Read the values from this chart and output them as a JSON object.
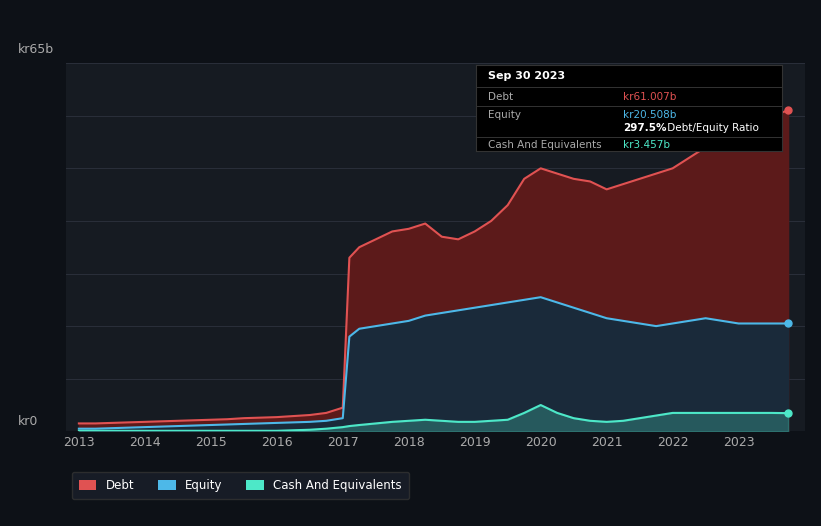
{
  "background_color": "#0d1117",
  "plot_bg_color": "#161b22",
  "grid_color": "#2a2f3a",
  "ylabel_text": "kr65b",
  "ylabel0_text": "kr0",
  "x_ticks": [
    2013,
    2014,
    2015,
    2016,
    2017,
    2018,
    2019,
    2020,
    2021,
    2022,
    2023
  ],
  "debt_color": "#e05252",
  "equity_color": "#4db8e8",
  "cash_color": "#4de8c8",
  "debt_fill_color": "#5c1a1a",
  "equity_fill_color": "#1a2a3a",
  "tooltip_bg": "#000000",
  "tooltip_title": "Sep 30 2023",
  "tooltip_debt_label": "Debt",
  "tooltip_debt_value": "kr61.007b",
  "tooltip_equity_label": "Equity",
  "tooltip_equity_value": "kr20.508b",
  "tooltip_ratio": "297.5%",
  "tooltip_ratio_text": " Debt/Equity Ratio",
  "tooltip_cash_label": "Cash And Equivalents",
  "tooltip_cash_value": "kr3.457b",
  "legend_debt": "Debt",
  "legend_equity": "Equity",
  "legend_cash": "Cash And Equivalents",
  "debt_data": [
    [
      2013.0,
      1.5
    ],
    [
      2013.25,
      1.5
    ],
    [
      2013.5,
      1.6
    ],
    [
      2013.75,
      1.7
    ],
    [
      2014.0,
      1.8
    ],
    [
      2014.25,
      1.9
    ],
    [
      2014.5,
      2.0
    ],
    [
      2014.75,
      2.1
    ],
    [
      2015.0,
      2.2
    ],
    [
      2015.25,
      2.3
    ],
    [
      2015.5,
      2.5
    ],
    [
      2015.75,
      2.6
    ],
    [
      2016.0,
      2.7
    ],
    [
      2016.25,
      2.9
    ],
    [
      2016.5,
      3.1
    ],
    [
      2016.75,
      3.5
    ],
    [
      2017.0,
      4.5
    ],
    [
      2017.1,
      33.0
    ],
    [
      2017.25,
      35.0
    ],
    [
      2017.5,
      36.5
    ],
    [
      2017.75,
      38.0
    ],
    [
      2018.0,
      38.5
    ],
    [
      2018.25,
      39.5
    ],
    [
      2018.5,
      37.0
    ],
    [
      2018.75,
      36.5
    ],
    [
      2019.0,
      38.0
    ],
    [
      2019.25,
      40.0
    ],
    [
      2019.5,
      43.0
    ],
    [
      2019.75,
      48.0
    ],
    [
      2020.0,
      50.0
    ],
    [
      2020.25,
      49.0
    ],
    [
      2020.5,
      48.0
    ],
    [
      2020.75,
      47.5
    ],
    [
      2021.0,
      46.0
    ],
    [
      2021.25,
      47.0
    ],
    [
      2021.5,
      48.0
    ],
    [
      2021.75,
      49.0
    ],
    [
      2022.0,
      50.0
    ],
    [
      2022.25,
      52.0
    ],
    [
      2022.5,
      54.0
    ],
    [
      2022.75,
      55.0
    ],
    [
      2023.0,
      57.0
    ],
    [
      2023.25,
      58.5
    ],
    [
      2023.5,
      60.0
    ],
    [
      2023.75,
      61.0
    ]
  ],
  "equity_data": [
    [
      2013.0,
      0.5
    ],
    [
      2013.25,
      0.5
    ],
    [
      2013.5,
      0.6
    ],
    [
      2013.75,
      0.7
    ],
    [
      2014.0,
      0.8
    ],
    [
      2014.25,
      0.9
    ],
    [
      2014.5,
      1.0
    ],
    [
      2014.75,
      1.1
    ],
    [
      2015.0,
      1.2
    ],
    [
      2015.25,
      1.3
    ],
    [
      2015.5,
      1.4
    ],
    [
      2015.75,
      1.5
    ],
    [
      2016.0,
      1.6
    ],
    [
      2016.25,
      1.7
    ],
    [
      2016.5,
      1.8
    ],
    [
      2016.75,
      2.0
    ],
    [
      2017.0,
      2.5
    ],
    [
      2017.1,
      18.0
    ],
    [
      2017.25,
      19.5
    ],
    [
      2017.5,
      20.0
    ],
    [
      2017.75,
      20.5
    ],
    [
      2018.0,
      21.0
    ],
    [
      2018.25,
      22.0
    ],
    [
      2018.5,
      22.5
    ],
    [
      2018.75,
      23.0
    ],
    [
      2019.0,
      23.5
    ],
    [
      2019.25,
      24.0
    ],
    [
      2019.5,
      24.5
    ],
    [
      2019.75,
      25.0
    ],
    [
      2020.0,
      25.5
    ],
    [
      2020.25,
      24.5
    ],
    [
      2020.5,
      23.5
    ],
    [
      2020.75,
      22.5
    ],
    [
      2021.0,
      21.5
    ],
    [
      2021.25,
      21.0
    ],
    [
      2021.5,
      20.5
    ],
    [
      2021.75,
      20.0
    ],
    [
      2022.0,
      20.5
    ],
    [
      2022.25,
      21.0
    ],
    [
      2022.5,
      21.5
    ],
    [
      2022.75,
      21.0
    ],
    [
      2023.0,
      20.5
    ],
    [
      2023.25,
      20.5
    ],
    [
      2023.5,
      20.5
    ],
    [
      2023.75,
      20.5
    ]
  ],
  "cash_data": [
    [
      2013.0,
      0.1
    ],
    [
      2013.25,
      0.1
    ],
    [
      2013.5,
      0.1
    ],
    [
      2013.75,
      0.1
    ],
    [
      2014.0,
      0.1
    ],
    [
      2014.25,
      0.1
    ],
    [
      2014.5,
      0.1
    ],
    [
      2014.75,
      0.1
    ],
    [
      2015.0,
      0.1
    ],
    [
      2015.25,
      0.1
    ],
    [
      2015.5,
      0.1
    ],
    [
      2015.75,
      0.1
    ],
    [
      2016.0,
      0.1
    ],
    [
      2016.25,
      0.2
    ],
    [
      2016.5,
      0.3
    ],
    [
      2016.75,
      0.5
    ],
    [
      2017.0,
      0.8
    ],
    [
      2017.1,
      1.0
    ],
    [
      2017.25,
      1.2
    ],
    [
      2017.5,
      1.5
    ],
    [
      2017.75,
      1.8
    ],
    [
      2018.0,
      2.0
    ],
    [
      2018.25,
      2.2
    ],
    [
      2018.5,
      2.0
    ],
    [
      2018.75,
      1.8
    ],
    [
      2019.0,
      1.8
    ],
    [
      2019.25,
      2.0
    ],
    [
      2019.5,
      2.2
    ],
    [
      2019.75,
      3.5
    ],
    [
      2020.0,
      5.0
    ],
    [
      2020.25,
      3.5
    ],
    [
      2020.5,
      2.5
    ],
    [
      2020.75,
      2.0
    ],
    [
      2021.0,
      1.8
    ],
    [
      2021.25,
      2.0
    ],
    [
      2021.5,
      2.5
    ],
    [
      2021.75,
      3.0
    ],
    [
      2022.0,
      3.5
    ],
    [
      2022.25,
      3.5
    ],
    [
      2022.5,
      3.5
    ],
    [
      2022.75,
      3.5
    ],
    [
      2023.0,
      3.5
    ],
    [
      2023.25,
      3.5
    ],
    [
      2023.5,
      3.5
    ],
    [
      2023.75,
      3.457
    ]
  ],
  "ylim": [
    0,
    70
  ],
  "xlim_min": 2012.8,
  "xlim_max": 2024.0
}
